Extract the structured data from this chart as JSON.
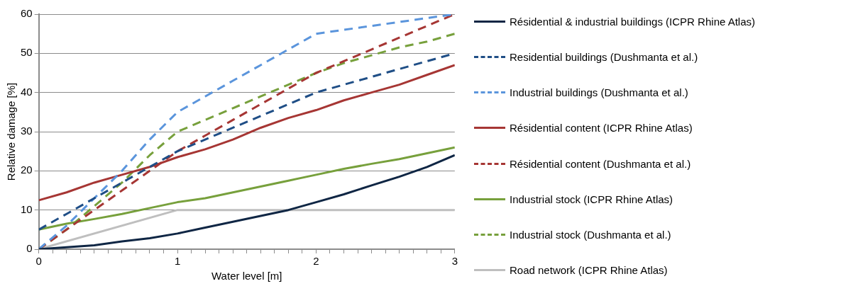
{
  "chart_data": {
    "type": "line",
    "xlabel": "Water level [m]",
    "ylabel": "Relative damage [%]",
    "x": [
      0,
      0.2,
      0.4,
      0.6,
      0.8,
      1.0,
      1.2,
      1.4,
      1.6,
      1.8,
      2.0,
      2.2,
      2.4,
      2.6,
      2.8,
      3.0
    ],
    "xlim": [
      0,
      3
    ],
    "xticks": [
      0,
      {
        "value": 0.1,
        "label": null
      },
      {
        "value": 0.2,
        "label": null
      },
      {
        "value": 0.3,
        "label": null
      },
      {
        "value": 0.4,
        "label": null
      },
      {
        "value": 0.5,
        "label": null
      },
      {
        "value": 0.6,
        "label": null
      },
      {
        "value": 0.7,
        "label": null
      },
      {
        "value": 0.8,
        "label": null
      },
      {
        "value": 0.9,
        "label": null
      },
      1,
      {
        "value": 1.1,
        "label": null
      },
      {
        "value": 1.2,
        "label": null
      },
      {
        "value": 1.3,
        "label": null
      },
      {
        "value": 1.4,
        "label": null
      },
      {
        "value": 1.5,
        "label": null
      },
      {
        "value": 1.6,
        "label": null
      },
      {
        "value": 1.7,
        "label": null
      },
      {
        "value": 1.8,
        "label": null
      },
      {
        "value": 1.9,
        "label": null
      },
      2,
      {
        "value": 2.1,
        "label": null
      },
      {
        "value": 2.2,
        "label": null
      },
      {
        "value": 2.3,
        "label": null
      },
      {
        "value": 2.4,
        "label": null
      },
      {
        "value": 2.5,
        "label": null
      },
      {
        "value": 2.6,
        "label": null
      },
      {
        "value": 2.7,
        "label": null
      },
      {
        "value": 2.8,
        "label": null
      },
      {
        "value": 2.9,
        "label": null
      },
      3
    ],
    "ylim": [
      0,
      60
    ],
    "yticks": [
      0,
      10,
      20,
      30,
      40,
      50,
      60
    ],
    "grid": "y",
    "legend": "right",
    "marker": "none",
    "series": [
      {
        "name": "Résidential & industrial buildings (ICPR Rhine Atlas)",
        "color": "#0f2644",
        "line_style": "solid",
        "values": [
          0,
          0.5,
          1,
          2,
          2.8,
          4,
          5.5,
          7,
          8.5,
          10,
          12,
          14,
          16.3,
          18.5,
          21,
          24
        ]
      },
      {
        "name": "Residential buildings (Dushmanta et al.)",
        "color": "#1f4e86",
        "line_style": "dashed",
        "values": [
          5,
          9,
          13,
          17,
          21,
          25,
          28,
          31,
          34,
          37,
          40,
          42,
          44,
          46,
          48,
          50
        ]
      },
      {
        "name": "Industrial buildings (Dushmanta et al.)",
        "color": "#5b95dc",
        "line_style": "dashed",
        "values": [
          0,
          6,
          13,
          20,
          28,
          35,
          39,
          43,
          47,
          51,
          55,
          56,
          57,
          58,
          59,
          60
        ]
      },
      {
        "name": "Résidential content (ICPR Rhine Atlas)",
        "color": "#a63634",
        "line_style": "solid",
        "values": [
          12.5,
          14.5,
          17,
          19,
          21,
          23.5,
          25.5,
          28,
          31,
          33.5,
          35.5,
          38,
          40,
          42,
          44.5,
          47
        ]
      },
      {
        "name": "Résidential content (Dushmanta et al.)",
        "color": "#a63634",
        "line_style": "dashed",
        "values": [
          0,
          5,
          10,
          15,
          20,
          25,
          29,
          33,
          37,
          41,
          45,
          48,
          51,
          54,
          57,
          60
        ]
      },
      {
        "name": "Industrial stock (ICPR Rhine Atlas)",
        "color": "#77a03c",
        "line_style": "solid",
        "values": [
          5,
          6.5,
          7.7,
          9,
          10.5,
          12,
          13,
          14.5,
          16,
          17.5,
          19,
          20.5,
          21.8,
          23,
          24.5,
          26
        ]
      },
      {
        "name": "Industrial stock (Dushmanta et al.)",
        "color": "#77a03c",
        "line_style": "dashed",
        "values": [
          0,
          5,
          11,
          17,
          24,
          30,
          33,
          36,
          39,
          42,
          45,
          47.5,
          49.5,
          51.5,
          53,
          55
        ]
      },
      {
        "name": "Road network (ICPR Rhine Atlas)",
        "color": "#bfbfbf",
        "line_style": "solid",
        "x": [
          0,
          1,
          3
        ],
        "values": [
          0,
          10,
          10
        ]
      }
    ]
  }
}
